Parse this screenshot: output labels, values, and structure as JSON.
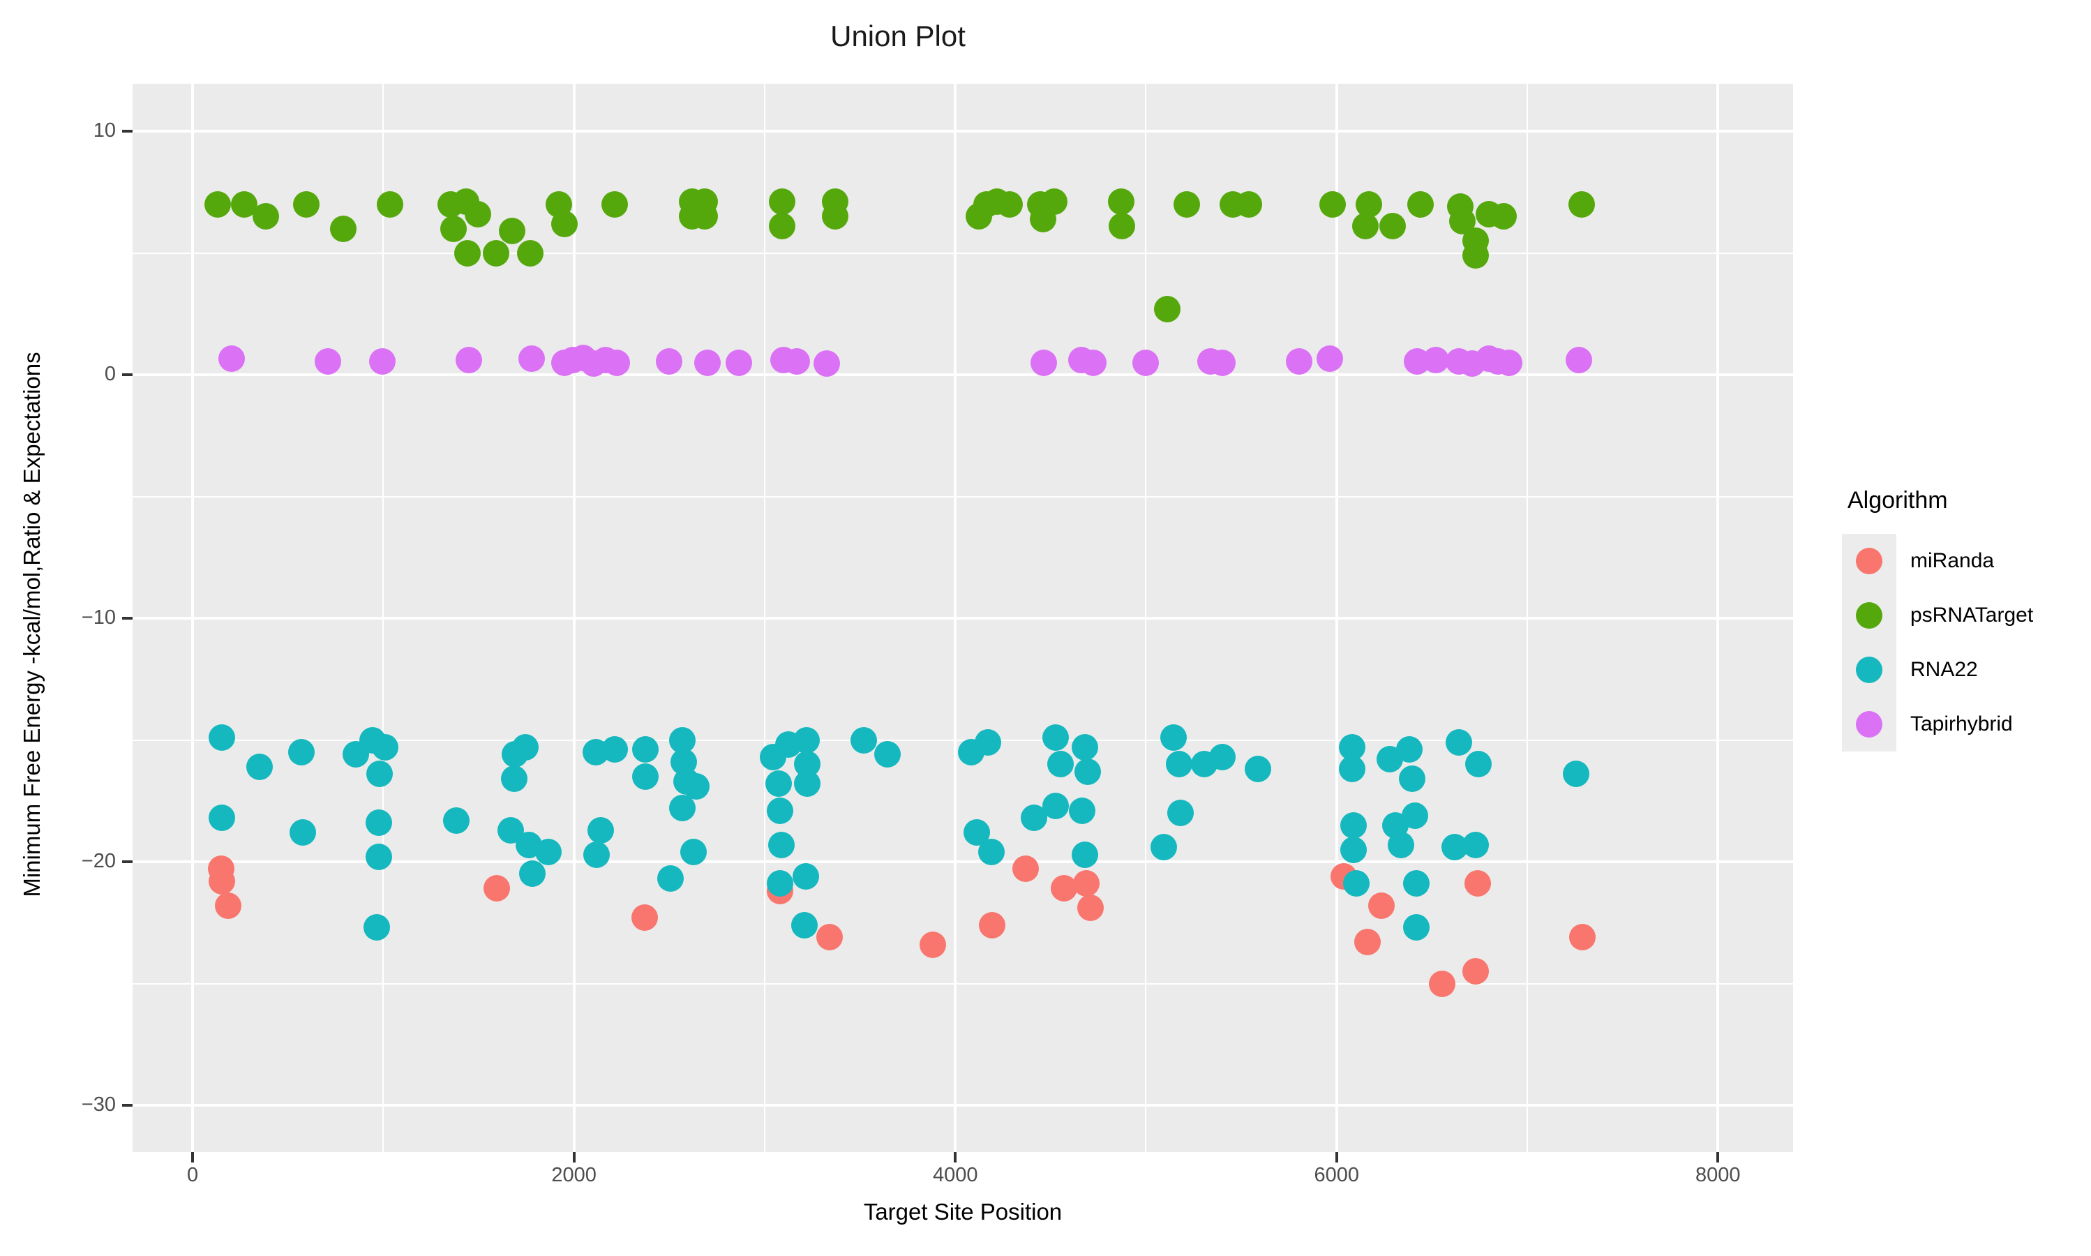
{
  "chart_data": {
    "type": "scatter",
    "title": "Union Plot",
    "xlabel": "Target Site Position",
    "ylabel": "Minimum Free Energy -kcal/mol,Ratio & Expectations",
    "grid": "on",
    "panel_background": "#EBEBEB",
    "gridline_color": "#FFFFFF",
    "x_axis": {
      "lim": [
        -315,
        8394
      ],
      "major_ticks": [
        0,
        2000,
        4000,
        6000,
        8000
      ],
      "major_tick_labels": [
        "0",
        "2000",
        "4000",
        "6000",
        "8000"
      ],
      "minor_ticks": [
        1000,
        3000,
        5000,
        7000
      ]
    },
    "y_axis": {
      "lim": [
        -31.92,
        11.95
      ],
      "major_ticks": [
        10,
        0,
        -10,
        -20,
        -30
      ],
      "major_tick_labels": [
        "10",
        "0",
        "−10",
        "−20",
        "−30"
      ],
      "minor_ticks": [
        5,
        -5,
        -15,
        -25
      ]
    },
    "legend": {
      "title": "Algorithm",
      "position": "right",
      "entries": [
        {
          "label": "miRanda",
          "color": "#F8766D"
        },
        {
          "label": "psRNATarget",
          "color": "#55A80C"
        },
        {
          "label": "RNA22",
          "color": "#14B8BE"
        },
        {
          "label": "Tapirhybrid",
          "color": "#DB72F5"
        }
      ]
    },
    "series": [
      {
        "name": "miRanda",
        "color": "#F8766D",
        "points": [
          [
            150,
            -20.3
          ],
          [
            155,
            -20.8
          ],
          [
            185,
            -21.8
          ],
          [
            1595,
            -21.1
          ],
          [
            2372,
            -22.3
          ],
          [
            3080,
            -21.2
          ],
          [
            3340,
            -23.1
          ],
          [
            3882,
            -23.4
          ],
          [
            4195,
            -22.6
          ],
          [
            4370,
            -20.3
          ],
          [
            4571,
            -21.1
          ],
          [
            4688,
            -20.9
          ],
          [
            4710,
            -21.9
          ],
          [
            6039,
            -20.6
          ],
          [
            6163,
            -23.3
          ],
          [
            6235,
            -21.8
          ],
          [
            6555,
            -25.0
          ],
          [
            6730,
            -24.5
          ],
          [
            6740,
            -20.9
          ],
          [
            7290,
            -23.1
          ]
        ]
      },
      {
        "name": "psRNATarget",
        "color": "#55A80C",
        "points": [
          [
            130,
            7
          ],
          [
            270,
            7
          ],
          [
            385,
            6.5
          ],
          [
            595,
            7
          ],
          [
            790,
            6
          ],
          [
            1035,
            7
          ],
          [
            1355,
            7
          ],
          [
            1435,
            7.1
          ],
          [
            1495,
            6.6
          ],
          [
            1370,
            6
          ],
          [
            1440,
            5
          ],
          [
            1590,
            5
          ],
          [
            1675,
            5.9
          ],
          [
            1770,
            5
          ],
          [
            1920,
            7
          ],
          [
            1950,
            6.2
          ],
          [
            2215,
            7
          ],
          [
            2620,
            7.1
          ],
          [
            2685,
            7.1
          ],
          [
            2620,
            6.5
          ],
          [
            2685,
            6.5
          ],
          [
            3090,
            7.1
          ],
          [
            3090,
            6.1
          ],
          [
            3370,
            7.1
          ],
          [
            3370,
            6.5
          ],
          [
            4125,
            6.5
          ],
          [
            4165,
            7
          ],
          [
            4220,
            7.1
          ],
          [
            4285,
            7
          ],
          [
            4445,
            7
          ],
          [
            4520,
            7.1
          ],
          [
            4460,
            6.4
          ],
          [
            4870,
            7.1
          ],
          [
            4875,
            6.1
          ],
          [
            5110,
            2.7
          ],
          [
            5215,
            7
          ],
          [
            5455,
            7
          ],
          [
            5540,
            7
          ],
          [
            5980,
            7
          ],
          [
            6170,
            7
          ],
          [
            6150,
            6.1
          ],
          [
            6295,
            6.1
          ],
          [
            6440,
            7
          ],
          [
            6650,
            6.9
          ],
          [
            6660,
            6.3
          ],
          [
            6800,
            6.6
          ],
          [
            6875,
            6.5
          ],
          [
            6730,
            5.5
          ],
          [
            6730,
            4.9
          ],
          [
            7285,
            7
          ]
        ]
      },
      {
        "name": "RNA22",
        "color": "#14B8BE",
        "points": [
          [
            155,
            -14.9
          ],
          [
            350,
            -16.1
          ],
          [
            570,
            -15.5
          ],
          [
            855,
            -15.6
          ],
          [
            945,
            -15.0
          ],
          [
            1010,
            -15.3
          ],
          [
            980,
            -16.4
          ],
          [
            155,
            -18.2
          ],
          [
            578,
            -18.8
          ],
          [
            975,
            -18.4
          ],
          [
            975,
            -19.8
          ],
          [
            966,
            -22.7
          ],
          [
            1383,
            -18.3
          ],
          [
            1690,
            -15.6
          ],
          [
            1745,
            -15.3
          ],
          [
            1685,
            -16.6
          ],
          [
            1670,
            -18.7
          ],
          [
            1765,
            -19.3
          ],
          [
            1865,
            -19.6
          ],
          [
            1780,
            -20.5
          ],
          [
            2113,
            -15.5
          ],
          [
            2215,
            -15.4
          ],
          [
            2374,
            -15.4
          ],
          [
            2374,
            -16.5
          ],
          [
            2570,
            -15.0
          ],
          [
            2577,
            -15.9
          ],
          [
            2590,
            -16.7
          ],
          [
            2640,
            -16.9
          ],
          [
            2570,
            -17.8
          ],
          [
            2142,
            -18.7
          ],
          [
            2120,
            -19.7
          ],
          [
            2628,
            -19.6
          ],
          [
            2505,
            -20.7
          ],
          [
            3044,
            -15.7
          ],
          [
            3124,
            -15.2
          ],
          [
            3218,
            -15.0
          ],
          [
            3225,
            -16.0
          ],
          [
            3073,
            -16.8
          ],
          [
            3225,
            -16.8
          ],
          [
            3080,
            -17.9
          ],
          [
            3087,
            -19.3
          ],
          [
            3080,
            -20.9
          ],
          [
            3217,
            -20.6
          ],
          [
            3210,
            -22.6
          ],
          [
            3521,
            -15.0
          ],
          [
            3644,
            -15.6
          ],
          [
            4084,
            -15.5
          ],
          [
            4170,
            -15.1
          ],
          [
            4113,
            -18.8
          ],
          [
            4190,
            -19.6
          ],
          [
            4528,
            -14.9
          ],
          [
            4550,
            -16.0
          ],
          [
            4680,
            -15.3
          ],
          [
            4695,
            -16.3
          ],
          [
            4412,
            -18.2
          ],
          [
            4528,
            -17.7
          ],
          [
            4666,
            -17.9
          ],
          [
            4680,
            -19.7
          ],
          [
            5145,
            -14.9
          ],
          [
            5174,
            -16.0
          ],
          [
            5305,
            -16.0
          ],
          [
            5400,
            -15.7
          ],
          [
            5589,
            -16.2
          ],
          [
            5182,
            -18.0
          ],
          [
            5094,
            -19.4
          ],
          [
            6080,
            -15.3
          ],
          [
            6080,
            -16.2
          ],
          [
            6090,
            -18.5
          ],
          [
            6090,
            -19.5
          ],
          [
            6280,
            -15.8
          ],
          [
            6380,
            -15.4
          ],
          [
            6395,
            -16.6
          ],
          [
            6310,
            -18.5
          ],
          [
            6410,
            -18.1
          ],
          [
            6337,
            -19.3
          ],
          [
            6105,
            -20.9
          ],
          [
            6417,
            -20.9
          ],
          [
            6417,
            -22.7
          ],
          [
            6640,
            -15.1
          ],
          [
            6745,
            -16.0
          ],
          [
            7255,
            -16.4
          ],
          [
            6620,
            -19.4
          ],
          [
            6730,
            -19.3
          ]
        ]
      },
      {
        "name": "Tapirhybrid",
        "color": "#DB72F5",
        "points": [
          [
            205,
            0.65
          ],
          [
            710,
            0.55
          ],
          [
            995,
            0.55
          ],
          [
            1450,
            0.6
          ],
          [
            1777,
            0.65
          ],
          [
            1950,
            0.5
          ],
          [
            1995,
            0.6
          ],
          [
            2050,
            0.7
          ],
          [
            2105,
            0.45
          ],
          [
            2165,
            0.6
          ],
          [
            2225,
            0.5
          ],
          [
            2500,
            0.55
          ],
          [
            2700,
            0.5
          ],
          [
            2865,
            0.5
          ],
          [
            3100,
            0.6
          ],
          [
            3170,
            0.55
          ],
          [
            3325,
            0.45
          ],
          [
            4465,
            0.5
          ],
          [
            4660,
            0.6
          ],
          [
            4725,
            0.5
          ],
          [
            4998,
            0.5
          ],
          [
            5340,
            0.55
          ],
          [
            5400,
            0.5
          ],
          [
            5805,
            0.55
          ],
          [
            5965,
            0.65
          ],
          [
            6420,
            0.55
          ],
          [
            6520,
            0.6
          ],
          [
            6640,
            0.55
          ],
          [
            6710,
            0.45
          ],
          [
            6800,
            0.65
          ],
          [
            6845,
            0.55
          ],
          [
            6905,
            0.5
          ],
          [
            7270,
            0.6
          ]
        ]
      }
    ]
  }
}
